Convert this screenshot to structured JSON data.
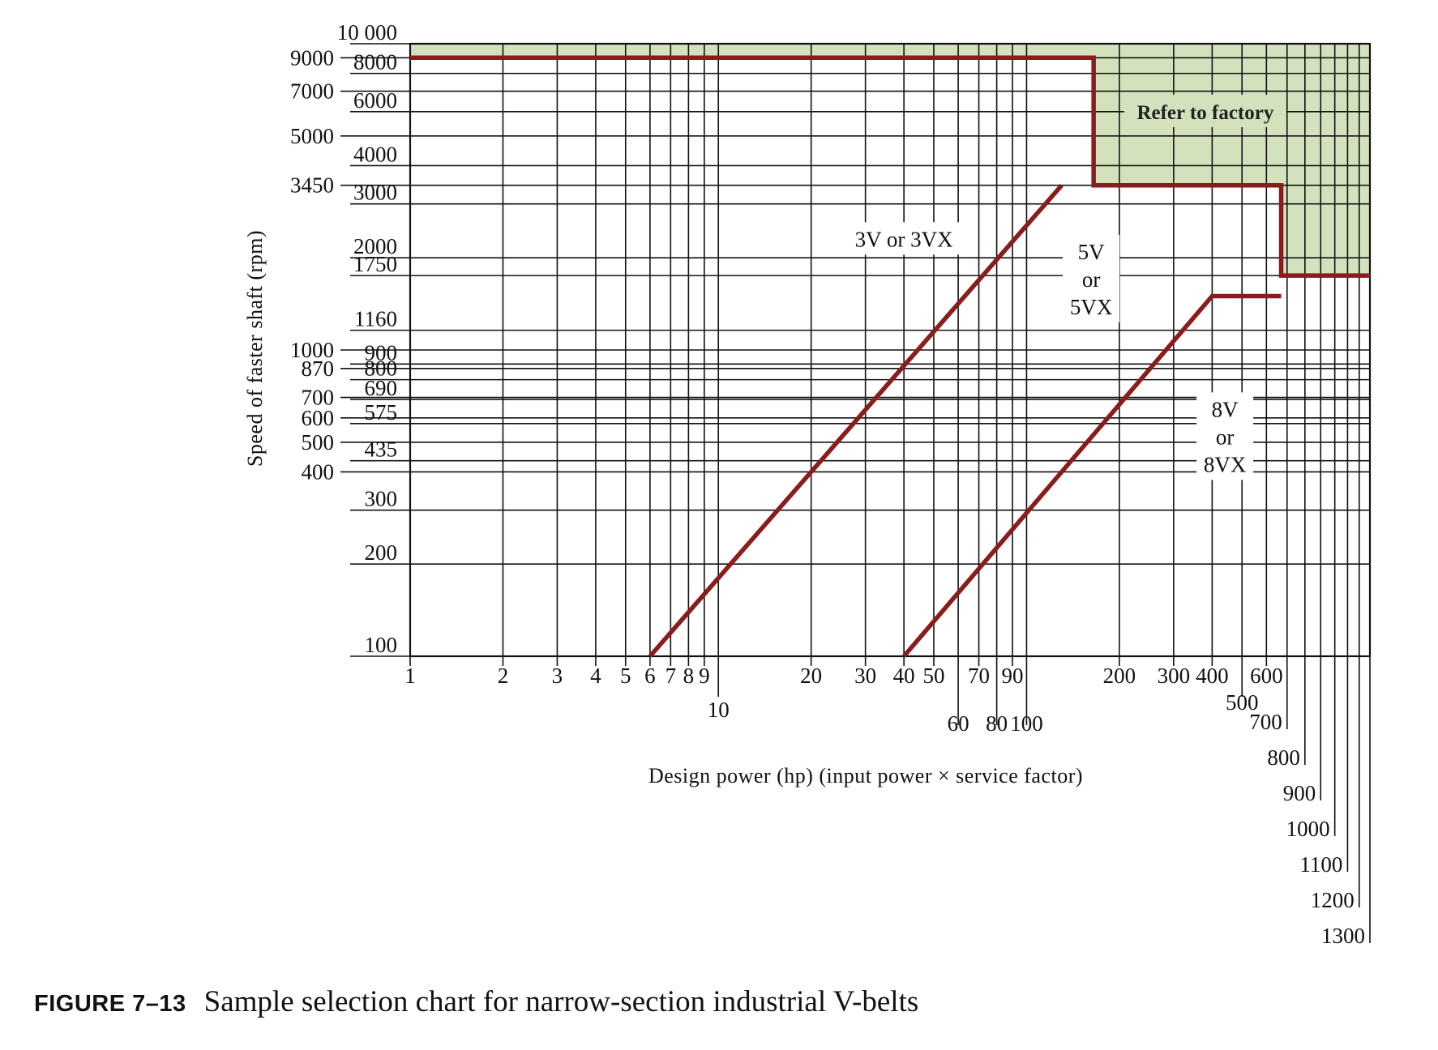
{
  "caption": {
    "figure_number": "FIGURE 7–13",
    "text": "Sample selection chart for narrow-section industrial V-belts"
  },
  "colors": {
    "region_fill": "#d3e2bd",
    "boundary": "#8b1c1c",
    "grid": "#111111"
  },
  "chart_data": {
    "type": "line",
    "title": "",
    "xlabel": "Design power (hp) (input power × service factor)",
    "ylabel": "Speed of faster shaft (rpm)",
    "x_scale": "log",
    "y_scale": "log",
    "xlim": [
      1,
      1300
    ],
    "ylim": [
      100,
      10000
    ],
    "grid": true,
    "x_ticks": [
      {
        "v": 1,
        "label": "1",
        "row": 0
      },
      {
        "v": 2,
        "label": "2",
        "row": 0
      },
      {
        "v": 3,
        "label": "3",
        "row": 0
      },
      {
        "v": 4,
        "label": "4",
        "row": 0
      },
      {
        "v": 5,
        "label": "5",
        "row": 0
      },
      {
        "v": 6,
        "label": "6",
        "row": 0
      },
      {
        "v": 7,
        "label": "7",
        "row": 0
      },
      {
        "v": 8,
        "label": "8",
        "row": 0
      },
      {
        "v": 9,
        "label": "9",
        "row": 0
      },
      {
        "v": 10,
        "label": "10",
        "row": 1
      },
      {
        "v": 20,
        "label": "20",
        "row": 0
      },
      {
        "v": 30,
        "label": "30",
        "row": 0
      },
      {
        "v": 40,
        "label": "40",
        "row": 0
      },
      {
        "v": 50,
        "label": "50",
        "row": 0
      },
      {
        "v": 60,
        "label": "60",
        "row": 2
      },
      {
        "v": 70,
        "label": "70",
        "row": 0
      },
      {
        "v": 80,
        "label": "80",
        "row": 2
      },
      {
        "v": 90,
        "label": "90",
        "row": 0
      },
      {
        "v": 100,
        "label": "100",
        "row": 2
      },
      {
        "v": 200,
        "label": "200",
        "row": 0
      },
      {
        "v": 300,
        "label": "300",
        "row": 0
      },
      {
        "v": 400,
        "label": "400",
        "row": 0
      },
      {
        "v": 500,
        "label": "500",
        "row": 1
      },
      {
        "v": 600,
        "label": "600",
        "row": 0
      },
      {
        "v": 700,
        "label": "700",
        "row": 3
      },
      {
        "v": 800,
        "label": "800",
        "row": 4
      },
      {
        "v": 900,
        "label": "900",
        "row": 5
      },
      {
        "v": 1000,
        "label": "1000",
        "row": 6
      },
      {
        "v": 1100,
        "label": "1100",
        "row": 7
      },
      {
        "v": 1200,
        "label": "1200",
        "row": 8
      },
      {
        "v": 1300,
        "label": "1300",
        "row": 9
      }
    ],
    "y_ticks_outer": [
      {
        "v": 9000,
        "label": "9000"
      },
      {
        "v": 7000,
        "label": "7000"
      },
      {
        "v": 5000,
        "label": "5000"
      },
      {
        "v": 3450,
        "label": "3450"
      },
      {
        "v": 1000,
        "label": "1000"
      },
      {
        "v": 870,
        "label": "870"
      },
      {
        "v": 700,
        "label": "700"
      },
      {
        "v": 600,
        "label": "600"
      },
      {
        "v": 500,
        "label": "500"
      },
      {
        "v": 400,
        "label": "400"
      }
    ],
    "y_ticks_inner": [
      {
        "v": 10000,
        "label": "10 000"
      },
      {
        "v": 8000,
        "label": "8000"
      },
      {
        "v": 6000,
        "label": "6000"
      },
      {
        "v": 4000,
        "label": "4000"
      },
      {
        "v": 3000,
        "label": "3000"
      },
      {
        "v": 2000,
        "label": "2000"
      },
      {
        "v": 1750,
        "label": "1750"
      },
      {
        "v": 1160,
        "label": "1160"
      },
      {
        "v": 900,
        "label": "900"
      },
      {
        "v": 800,
        "label": "800"
      },
      {
        "v": 690,
        "label": "690"
      },
      {
        "v": 575,
        "label": "575"
      },
      {
        "v": 435,
        "label": "435"
      },
      {
        "v": 300,
        "label": "300"
      },
      {
        "v": 200,
        "label": "200"
      },
      {
        "v": 100,
        "label": "100"
      }
    ],
    "series": [
      {
        "values": [
          [
            1,
            9000
          ],
          [
            165,
            9000
          ],
          [
            165,
            3450
          ],
          [
            670,
            3450
          ],
          [
            670,
            1750
          ],
          [
            1300,
            1750
          ]
        ]
      },
      {
        "values": [
          [
            6,
            100
          ],
          [
            130,
            3450
          ]
        ]
      },
      {
        "values": [
          [
            40,
            100
          ],
          [
            400,
            1500
          ],
          [
            670,
            1500
          ]
        ]
      }
    ],
    "regions": [
      {
        "name": "Refer to factory",
        "label_lines": [
          "Refer to factory"
        ],
        "label_at": [
          380,
          6000
        ]
      },
      {
        "name": "3V or 3VX",
        "label_lines": [
          "3V or 3VX"
        ],
        "label_at": [
          40,
          2300
        ]
      },
      {
        "name": "5V or 5VX",
        "label_lines": [
          "5V",
          "or",
          "5VX"
        ],
        "label_at": [
          162,
          1700
        ]
      },
      {
        "name": "8V or 8VX",
        "label_lines": [
          "8V",
          "or",
          "8VX"
        ],
        "label_at": [
          440,
          520
        ]
      }
    ]
  }
}
